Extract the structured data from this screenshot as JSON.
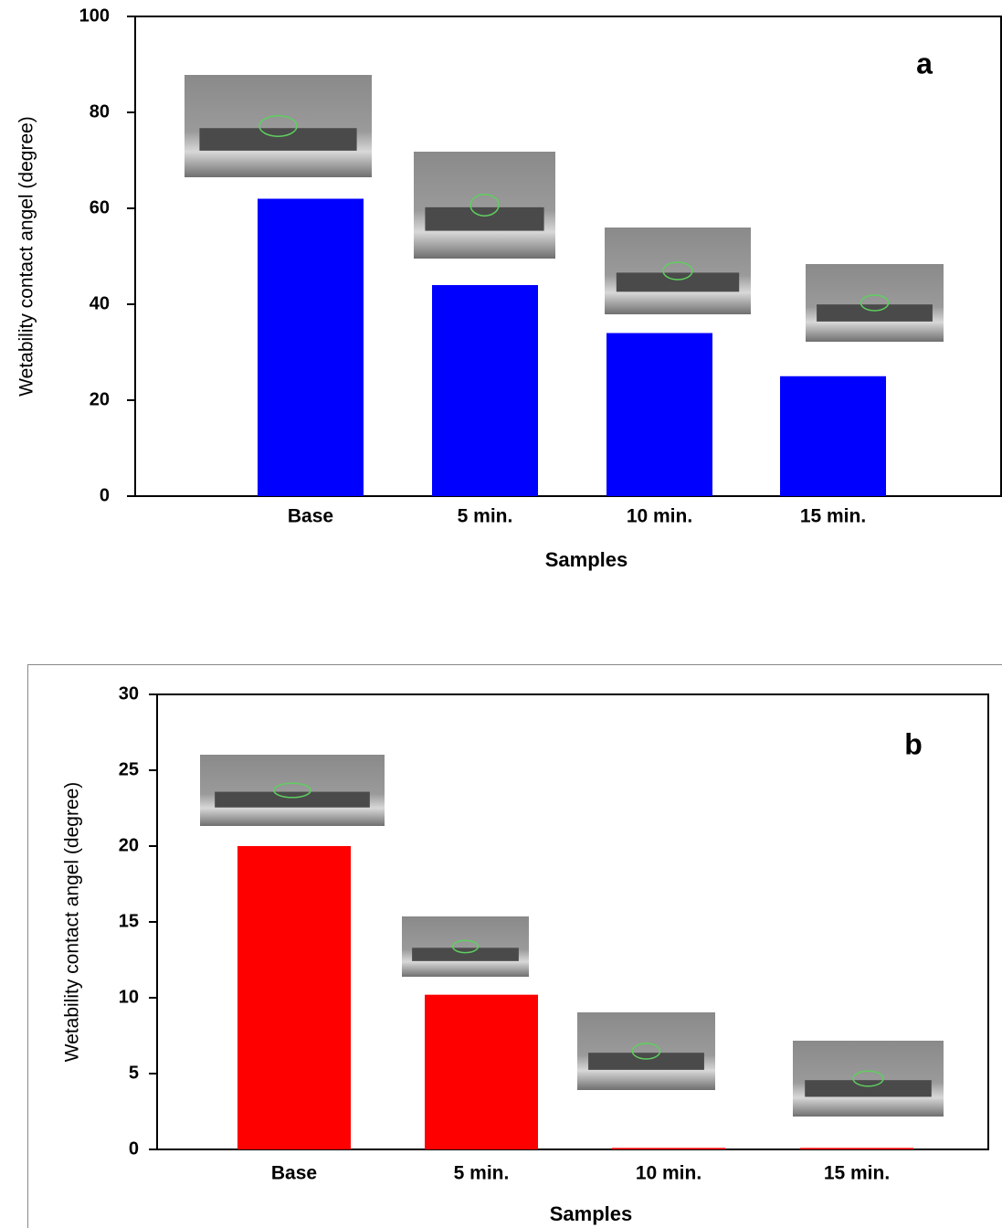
{
  "chart_data": [
    {
      "type": "bar",
      "title": "a",
      "x_label": "Samples",
      "y_label": "Wetability contact angel (degree)",
      "categories": [
        "Base",
        "5 min.",
        "10 min.",
        "15 min."
      ],
      "values": [
        62,
        44,
        34,
        25
      ],
      "color": "#0000ff",
      "ylim": [
        0,
        100
      ],
      "yticks": [
        0,
        20,
        40,
        60,
        80,
        100
      ]
    },
    {
      "type": "bar",
      "title": "b",
      "x_label": "Samples",
      "y_label": "Wetability contact angel (degree)",
      "categories": [
        "Base",
        "5 min.",
        "10 min.",
        "15 min."
      ],
      "values": [
        20,
        10.2,
        0.1,
        0.1
      ],
      "color": "#ff0000",
      "ylim": [
        0,
        30
      ],
      "yticks": [
        0,
        5,
        10,
        15,
        20,
        25,
        30
      ]
    }
  ]
}
